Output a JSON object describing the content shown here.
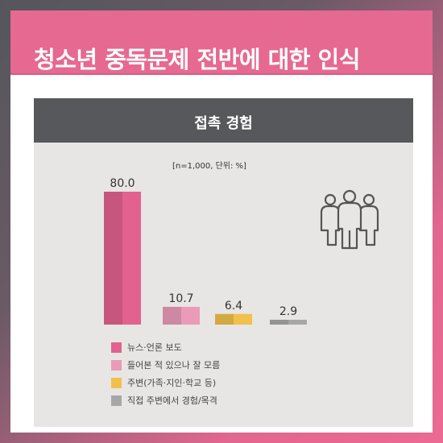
{
  "title": "청소년 중독문제 전반에 대한 인식",
  "panel": {
    "heading": "접촉 경험",
    "unit_note": "[n=1,000, 단위: %]"
  },
  "icons": {
    "illustration": "people-group-icon"
  },
  "chart_data": {
    "type": "bar",
    "categories": [
      "뉴스·언론 보도",
      "들어본 적 있으나 잘 모름",
      "주변(가족·지인·학교 등)",
      "직접 주변에서 경험/목격"
    ],
    "values": [
      80.0,
      10.7,
      6.4,
      2.9
    ],
    "value_labels": [
      "80.0",
      "10.7",
      "6.4",
      "2.9"
    ],
    "colors": [
      "#e2628f",
      "#e99bb8",
      "#f0c14b",
      "#a7a7a7"
    ],
    "ylim": [
      0,
      80
    ],
    "legend_position": "bottom-left"
  }
}
